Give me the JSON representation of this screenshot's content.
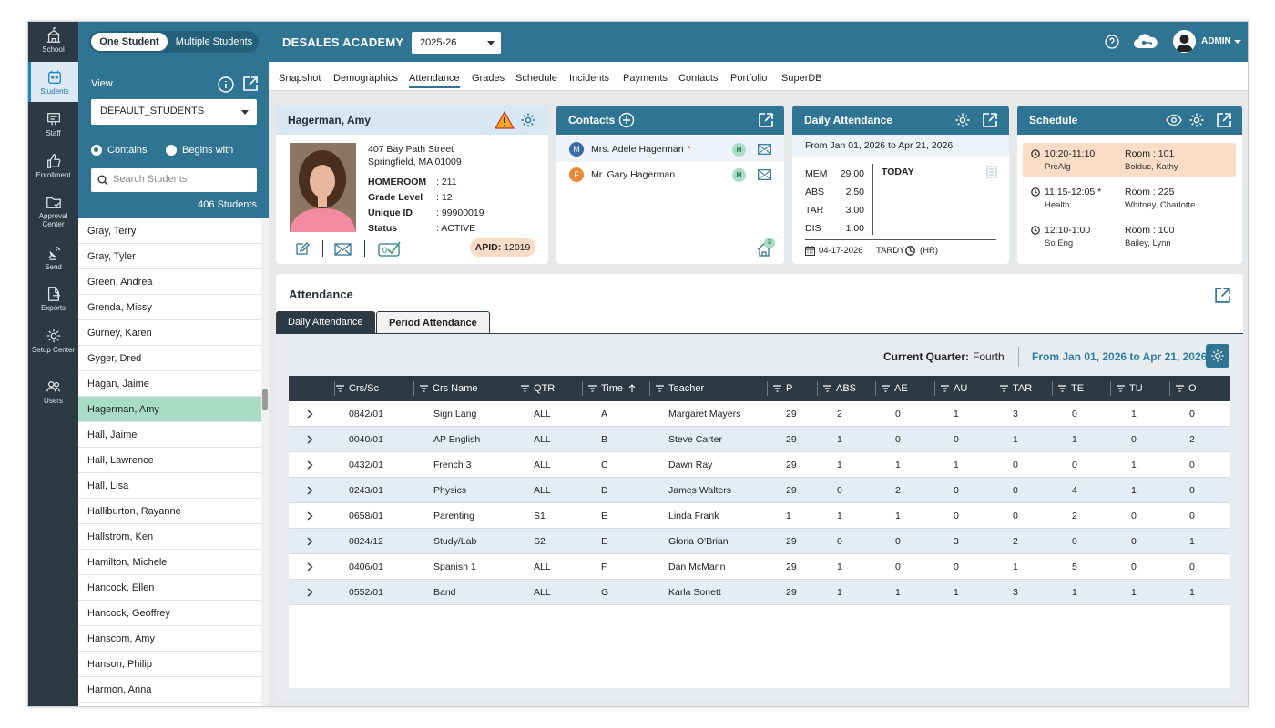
{
  "rail": [
    {
      "label": "School",
      "icon": "school-icon"
    },
    {
      "label": "Students",
      "icon": "students-icon"
    },
    {
      "label": "Staff",
      "icon": "staff-icon"
    },
    {
      "label": "Enrollment",
      "icon": "thumbs-up-icon"
    },
    {
      "label": "Approval Center",
      "icon": "folder-check-icon"
    },
    {
      "label": "Send",
      "icon": "satellite-icon"
    },
    {
      "label": "Exports",
      "icon": "export-icon"
    },
    {
      "label": "Setup Center",
      "icon": "gear-icon"
    },
    {
      "label": "Users",
      "icon": "users-icon"
    }
  ],
  "student_panel": {
    "toggle_one": "One Student",
    "toggle_multi": "Multiple Students",
    "view_label": "View",
    "view_value": "DEFAULT_STUDENTS",
    "radio_contains": "Contains",
    "radio_begins": "Begins with",
    "search_placeholder": "Search Students",
    "count": "406 Students",
    "students": [
      "Gray, Terry",
      "Gray, Tyler",
      "Green, Andrea",
      "Grenda, Missy",
      "Gurney, Karen",
      "Gyger, Dred",
      "Hagan, Jaime",
      "Hagerman, Amy",
      "Hall, Jaime",
      "Hall, Lawrence",
      "Hall, Lisa",
      "Halliburton, Rayanne",
      "Hallstrom, Ken",
      "Hamilton, Michele",
      "Hancock, Ellen",
      "Hancock, Geoffrey",
      "Hanscom, Amy",
      "Hanson, Philip",
      "Harmon, Anna"
    ],
    "selected": "Hagerman, Amy"
  },
  "topbar": {
    "school": "DESALES ACADEMY",
    "year": "2025-26",
    "user": "ADMIN"
  },
  "tabs": [
    "Snapshot",
    "Demographics",
    "Attendance",
    "Grades",
    "Schedule",
    "Incidents",
    "Payments",
    "Contacts",
    "Portfolio",
    "SuperDB"
  ],
  "active_tab": "Attendance",
  "student_card": {
    "name": "Hagerman, Amy",
    "addr1": "407 Bay Path Street",
    "addr2": "Springfield, MA 01009",
    "homeroom_k": "HOMEROOM",
    "homeroom_v": ": 211",
    "grade_k": "Grade Level",
    "grade_v": ": 12",
    "uid_k": "Unique ID",
    "uid_v": ": 99900019",
    "status_k": "Status",
    "status_v": ": ACTIVE",
    "apid_label": "APID:",
    "apid_value": "12019"
  },
  "contacts_card": {
    "title": "Contacts",
    "contacts": [
      {
        "initial": "M",
        "name": "Mrs. Adele Hagerman",
        "badge": "H",
        "color": "#3a6da8"
      },
      {
        "initial": "F",
        "name": "Mr. Gary Hagerman",
        "badge": "H",
        "color": "#e8893a"
      }
    ],
    "star": "*",
    "home_count": "3"
  },
  "daily_card": {
    "title": "Daily Attendance",
    "range": "From Jan 01, 2026 to Apr 21, 2026",
    "rows": [
      {
        "k": "MEM",
        "v": "29.00"
      },
      {
        "k": "ABS",
        "v": "2.50"
      },
      {
        "k": "TAR",
        "v": "3.00"
      },
      {
        "k": "DIS",
        "v": "1.00"
      }
    ],
    "today": "TODAY",
    "date": "04-17-2026",
    "tardy": "TARDY",
    "hr": "(HR)"
  },
  "schedule_card": {
    "title": "Schedule",
    "items": [
      {
        "time": "10:20-11:10",
        "course": "PreAlg",
        "room": "Room : 101",
        "teacher": "Bolduc, Kathy",
        "current": true
      },
      {
        "time": "11:15-12:05 *",
        "course": "Health",
        "room": "Room : 225",
        "teacher": "Whitney, Charlotte",
        "current": false
      },
      {
        "time": "12:10-1:00",
        "course": "So Eng",
        "room": "Room : 100",
        "teacher": "Bailey, Lynn",
        "current": false
      }
    ]
  },
  "attendance": {
    "title": "Attendance",
    "subtab_daily": "Daily Attendance",
    "subtab_period": "Period Attendance",
    "cq_label": "Current Quarter:",
    "cq_value": "Fourth",
    "cq_range": "From Jan 01, 2026 to Apr 21, 2026",
    "columns": [
      "Crs/Sc",
      "Crs Name",
      "QTR",
      "Time",
      "Teacher",
      "P",
      "ABS",
      "AE",
      "AU",
      "TAR",
      "TE",
      "TU",
      "O"
    ],
    "rows": [
      [
        "0842/01",
        "Sign Lang",
        "ALL",
        "A",
        "Margaret Mayers",
        "29",
        "2",
        "0",
        "1",
        "3",
        "0",
        "1",
        "0"
      ],
      [
        "0040/01",
        "AP English",
        "ALL",
        "B",
        "Steve Carter",
        "29",
        "1",
        "0",
        "0",
        "1",
        "1",
        "0",
        "2"
      ],
      [
        "0432/01",
        "French 3",
        "ALL",
        "C",
        "Dawn Ray",
        "29",
        "1",
        "1",
        "1",
        "0",
        "0",
        "1",
        "0"
      ],
      [
        "0243/01",
        "Physics",
        "ALL",
        "D",
        "James Walters",
        "29",
        "0",
        "2",
        "0",
        "0",
        "4",
        "1",
        "0"
      ],
      [
        "0658/01",
        "Parenting",
        "S1",
        "E",
        "Linda Frank",
        "1",
        "1",
        "1",
        "0",
        "0",
        "2",
        "0",
        "0"
      ],
      [
        "0824/12",
        "Study/Lab",
        "S2",
        "E",
        "Gloria O'Brian",
        "29",
        "0",
        "0",
        "3",
        "2",
        "0",
        "0",
        "1"
      ],
      [
        "0406/01",
        "Spanish 1",
        "ALL",
        "F",
        "Dan McMann",
        "29",
        "1",
        "0",
        "0",
        "1",
        "5",
        "0",
        "0"
      ],
      [
        "0552/01",
        "Band",
        "ALL",
        "G",
        "Karla Sonett",
        "29",
        "1",
        "1",
        "1",
        "3",
        "1",
        "1",
        "1"
      ]
    ]
  }
}
